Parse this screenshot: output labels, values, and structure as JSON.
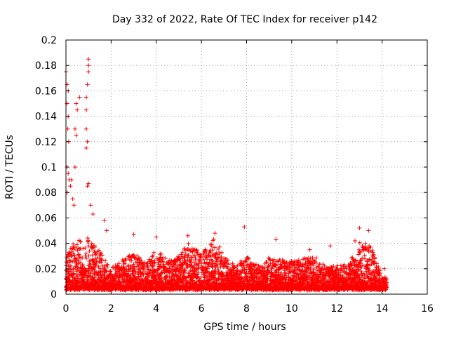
{
  "chart_data": {
    "type": "scatter",
    "title": "Day 332 of 2022, Rate Of TEC Index for receiver p142",
    "xlabel": "GPS time / hours",
    "ylabel": "ROTI / TECUs",
    "xlim": [
      0,
      16
    ],
    "ylim": [
      0,
      0.2
    ],
    "xticks": [
      0,
      2,
      4,
      6,
      8,
      10,
      12,
      14,
      16
    ],
    "yticks": [
      0,
      0.02,
      0.04,
      0.06,
      0.08,
      0.1,
      0.12,
      0.14,
      0.16,
      0.18,
      0.2
    ],
    "xtick_labels": [
      "0",
      "2",
      "4",
      "6",
      "8",
      "10",
      "12",
      "14",
      "16"
    ],
    "ytick_labels": [
      "0",
      "0.02",
      "0.04",
      "0.06",
      "0.08",
      "0.1",
      "0.12",
      "0.14",
      "0.16",
      "0.18",
      "0.2"
    ],
    "grid": true,
    "marker": "+",
    "color": "#ff0000",
    "series": [
      {
        "name": "ROTI",
        "peaks": [
          {
            "x": 0.0,
            "y": 0.175
          },
          {
            "x": 0.05,
            "y": 0.165
          },
          {
            "x": 0.1,
            "y": 0.16
          },
          {
            "x": 0.05,
            "y": 0.15
          },
          {
            "x": 0.1,
            "y": 0.14
          },
          {
            "x": 0.08,
            "y": 0.13
          },
          {
            "x": 0.12,
            "y": 0.12
          },
          {
            "x": 0.05,
            "y": 0.1
          },
          {
            "x": 0.1,
            "y": 0.095
          },
          {
            "x": 0.15,
            "y": 0.09
          },
          {
            "x": 0.05,
            "y": 0.08
          },
          {
            "x": 0.2,
            "y": 0.085
          },
          {
            "x": 0.25,
            "y": 0.09
          },
          {
            "x": 0.3,
            "y": 0.075
          },
          {
            "x": 0.35,
            "y": 0.07
          },
          {
            "x": 0.4,
            "y": 0.13
          },
          {
            "x": 0.45,
            "y": 0.125
          },
          {
            "x": 0.4,
            "y": 0.1
          },
          {
            "x": 0.45,
            "y": 0.15
          },
          {
            "x": 0.5,
            "y": 0.145
          },
          {
            "x": 0.6,
            "y": 0.155
          },
          {
            "x": 0.9,
            "y": 0.155
          },
          {
            "x": 0.9,
            "y": 0.145
          },
          {
            "x": 1.0,
            "y": 0.185
          },
          {
            "x": 1.0,
            "y": 0.18
          },
          {
            "x": 1.0,
            "y": 0.175
          },
          {
            "x": 0.95,
            "y": 0.165
          },
          {
            "x": 0.9,
            "y": 0.13
          },
          {
            "x": 0.95,
            "y": 0.12
          },
          {
            "x": 0.9,
            "y": 0.115
          },
          {
            "x": 0.95,
            "y": 0.085
          },
          {
            "x": 1.0,
            "y": 0.087
          },
          {
            "x": 1.1,
            "y": 0.07
          },
          {
            "x": 1.2,
            "y": 0.063
          },
          {
            "x": 1.7,
            "y": 0.058
          },
          {
            "x": 1.8,
            "y": 0.05
          },
          {
            "x": 3.0,
            "y": 0.047
          },
          {
            "x": 4.0,
            "y": 0.045
          },
          {
            "x": 5.4,
            "y": 0.046
          },
          {
            "x": 6.6,
            "y": 0.048
          },
          {
            "x": 7.9,
            "y": 0.053
          },
          {
            "x": 9.3,
            "y": 0.043
          },
          {
            "x": 10.8,
            "y": 0.035
          },
          {
            "x": 11.7,
            "y": 0.038
          },
          {
            "x": 12.8,
            "y": 0.042
          },
          {
            "x": 13.0,
            "y": 0.052
          },
          {
            "x": 13.4,
            "y": 0.05
          },
          {
            "x": 14.1,
            "y": 0.02
          }
        ],
        "envelope": [
          {
            "x": 0.0,
            "y": 0.03
          },
          {
            "x": 0.5,
            "y": 0.045
          },
          {
            "x": 1.0,
            "y": 0.045
          },
          {
            "x": 1.5,
            "y": 0.035
          },
          {
            "x": 2.0,
            "y": 0.02
          },
          {
            "x": 2.5,
            "y": 0.028
          },
          {
            "x": 3.0,
            "y": 0.033
          },
          {
            "x": 3.5,
            "y": 0.025
          },
          {
            "x": 4.0,
            "y": 0.035
          },
          {
            "x": 4.5,
            "y": 0.028
          },
          {
            "x": 5.0,
            "y": 0.03
          },
          {
            "x": 5.4,
            "y": 0.04
          },
          {
            "x": 6.0,
            "y": 0.032
          },
          {
            "x": 6.6,
            "y": 0.045
          },
          {
            "x": 7.0,
            "y": 0.03
          },
          {
            "x": 7.5,
            "y": 0.022
          },
          {
            "x": 8.0,
            "y": 0.03
          },
          {
            "x": 8.5,
            "y": 0.022
          },
          {
            "x": 9.0,
            "y": 0.03
          },
          {
            "x": 9.5,
            "y": 0.028
          },
          {
            "x": 10.0,
            "y": 0.025
          },
          {
            "x": 10.5,
            "y": 0.028
          },
          {
            "x": 11.0,
            "y": 0.03
          },
          {
            "x": 11.5,
            "y": 0.022
          },
          {
            "x": 12.0,
            "y": 0.022
          },
          {
            "x": 12.5,
            "y": 0.025
          },
          {
            "x": 13.0,
            "y": 0.04
          },
          {
            "x": 13.5,
            "y": 0.038
          },
          {
            "x": 14.0,
            "y": 0.015
          },
          {
            "x": 14.2,
            "y": 0.012
          }
        ]
      }
    ]
  }
}
